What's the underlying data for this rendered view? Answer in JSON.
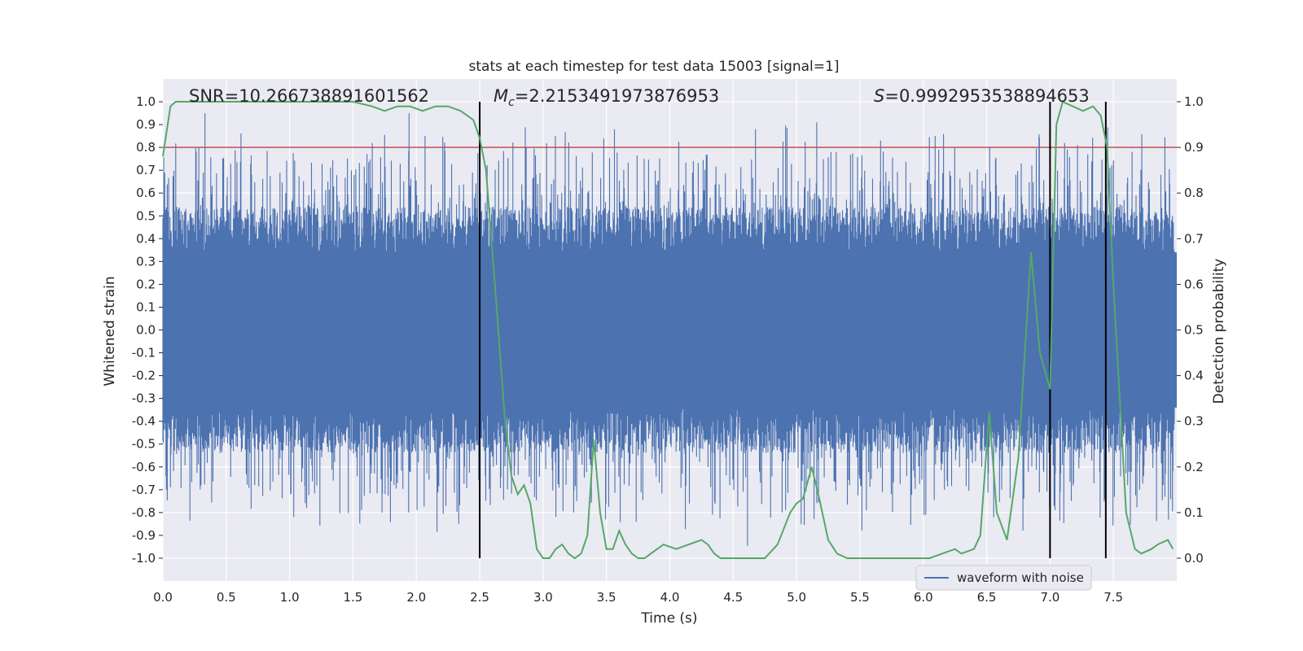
{
  "chart_data": {
    "type": "line",
    "title": "stats at each timestep for test data 15003 [signal=1]",
    "xlabel": "Time (s)",
    "ylabel_left": "Whitened strain",
    "ylabel_right": "Detection probability",
    "xlim": [
      0.0,
      8.0
    ],
    "ylim_left": [
      -1.1,
      1.1
    ],
    "ylim_right": [
      -0.05,
      1.05
    ],
    "x_ticks": [
      "0.0",
      "0.5",
      "1.0",
      "1.5",
      "2.0",
      "2.5",
      "3.0",
      "3.5",
      "4.0",
      "4.5",
      "5.0",
      "5.5",
      "6.0",
      "6.5",
      "7.0",
      "7.5"
    ],
    "y_ticks_left": [
      "1.0",
      "0.9",
      "0.8",
      "0.7",
      "0.6",
      "0.5",
      "0.4",
      "0.3",
      "0.2",
      "0.1",
      "0.0",
      "-0.1",
      "-0.2",
      "-0.3",
      "-0.4",
      "-0.5",
      "-0.6",
      "-0.7",
      "-0.8",
      "-0.9",
      "-1.0"
    ],
    "y_ticks_right": [
      "1.0",
      "0.9",
      "0.8",
      "0.7",
      "0.6",
      "0.5",
      "0.4",
      "0.3",
      "0.2",
      "0.1",
      "0.0"
    ],
    "annotations": {
      "snr": "SNR=10.266738891601562",
      "mc_symbol": "M",
      "mc_subscript": "c",
      "mc_value": "=2.2153491973876953",
      "s_symbol": "S",
      "s_value": "=0.9992953538894653"
    },
    "legend": [
      "waveform with noise"
    ],
    "threshold_line": {
      "y_left": 0.8,
      "color": "#c44e52"
    },
    "vertical_lines_x": [
      2.5,
      7.0,
      7.44
    ],
    "colors": {
      "waveform": "#4c72b0",
      "probability": "#55a868",
      "threshold": "#c44e52",
      "vlines": "#000000",
      "axes_bg": "#eaeaf2",
      "grid": "#ffffff"
    },
    "waveform": {
      "noise_envelope_left": 0.4,
      "description_points": "dense noise samples approx -1.0..1.0"
    },
    "probability_series": {
      "x": [
        0.0,
        0.06,
        0.1,
        0.3,
        0.6,
        0.9,
        1.1,
        1.3,
        1.5,
        1.65,
        1.75,
        1.85,
        1.95,
        2.05,
        2.15,
        2.25,
        2.35,
        2.45,
        2.5,
        2.55,
        2.62,
        2.7,
        2.75,
        2.8,
        2.85,
        2.9,
        2.95,
        3.0,
        3.05,
        3.1,
        3.15,
        3.2,
        3.25,
        3.3,
        3.35,
        3.4,
        3.45,
        3.5,
        3.55,
        3.6,
        3.65,
        3.7,
        3.75,
        3.8,
        3.85,
        3.95,
        4.05,
        4.15,
        4.25,
        4.3,
        4.35,
        4.4,
        4.5,
        4.65,
        4.75,
        4.85,
        4.95,
        5.0,
        5.05,
        5.12,
        5.18,
        5.25,
        5.32,
        5.4,
        5.5,
        5.7,
        5.9,
        6.05,
        6.15,
        6.25,
        6.3,
        6.4,
        6.45,
        6.52,
        6.58,
        6.66,
        6.75,
        6.85,
        6.92,
        7.0,
        7.05,
        7.1,
        7.18,
        7.26,
        7.34,
        7.4,
        7.45,
        7.5,
        7.55,
        7.6,
        7.67,
        7.72,
        7.8,
        7.85,
        7.93,
        7.97
      ],
      "y": [
        0.88,
        0.99,
        1.0,
        1.0,
        1.0,
        1.0,
        1.0,
        1.0,
        1.0,
        0.99,
        0.98,
        0.99,
        0.99,
        0.98,
        0.99,
        0.99,
        0.98,
        0.96,
        0.92,
        0.85,
        0.6,
        0.3,
        0.18,
        0.14,
        0.16,
        0.12,
        0.02,
        0.0,
        0.0,
        0.02,
        0.03,
        0.01,
        0.0,
        0.01,
        0.05,
        0.26,
        0.1,
        0.02,
        0.02,
        0.06,
        0.03,
        0.01,
        0.0,
        0.0,
        0.01,
        0.03,
        0.02,
        0.03,
        0.04,
        0.03,
        0.01,
        0.0,
        0.0,
        0.0,
        0.0,
        0.03,
        0.1,
        0.12,
        0.13,
        0.2,
        0.13,
        0.04,
        0.01,
        0.0,
        0.0,
        0.0,
        0.0,
        0.0,
        0.01,
        0.02,
        0.01,
        0.02,
        0.05,
        0.32,
        0.1,
        0.04,
        0.22,
        0.67,
        0.45,
        0.37,
        0.95,
        1.0,
        0.99,
        0.98,
        0.99,
        0.97,
        0.9,
        0.6,
        0.35,
        0.1,
        0.02,
        0.01,
        0.02,
        0.03,
        0.04,
        0.02
      ]
    }
  }
}
